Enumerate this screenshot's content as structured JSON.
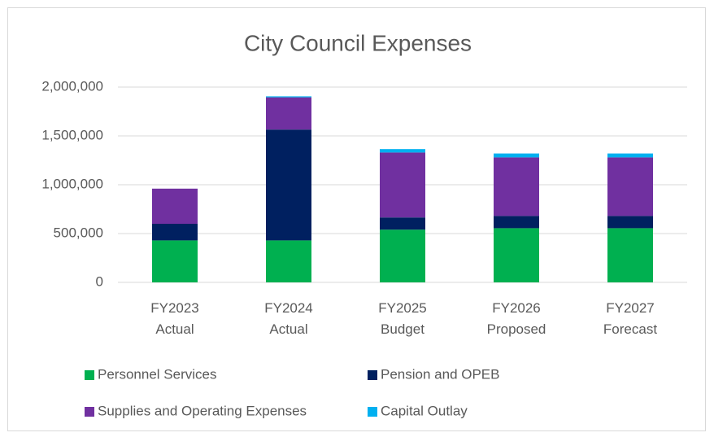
{
  "chart_data": {
    "type": "stacked_bar",
    "title": "City Council Expenses",
    "categories": [
      "FY2023 Actual",
      "FY2024 Actual",
      "FY2025 Budget",
      "FY2026 Proposed",
      "FY2027 Forecast"
    ],
    "series": [
      {
        "name": "Personnel Services",
        "color": "#00b050",
        "values": [
          430000,
          430000,
          540000,
          555000,
          555000
        ]
      },
      {
        "name": "Pension and OPEB",
        "color": "#002060",
        "values": [
          170000,
          1135000,
          125000,
          125000,
          125000
        ]
      },
      {
        "name": "Supplies and Operating Expenses",
        "color": "#7030a0",
        "values": [
          360000,
          330000,
          665000,
          600000,
          600000
        ]
      },
      {
        "name": "Capital Outlay",
        "color": "#00b0f0",
        "values": [
          0,
          10000,
          35000,
          40000,
          40000
        ]
      }
    ],
    "ylim": [
      0,
      2000000
    ],
    "yticks": [
      0,
      {
        "value": 500000,
        "label": "500,000"
      },
      {
        "value": 1000000,
        "label": "1,000,000"
      },
      {
        "value": 1500000,
        "label": "1,500,000"
      },
      {
        "value": 2000000,
        "label": "2,000,000"
      }
    ],
    "grid": true,
    "legend": "bottom"
  }
}
